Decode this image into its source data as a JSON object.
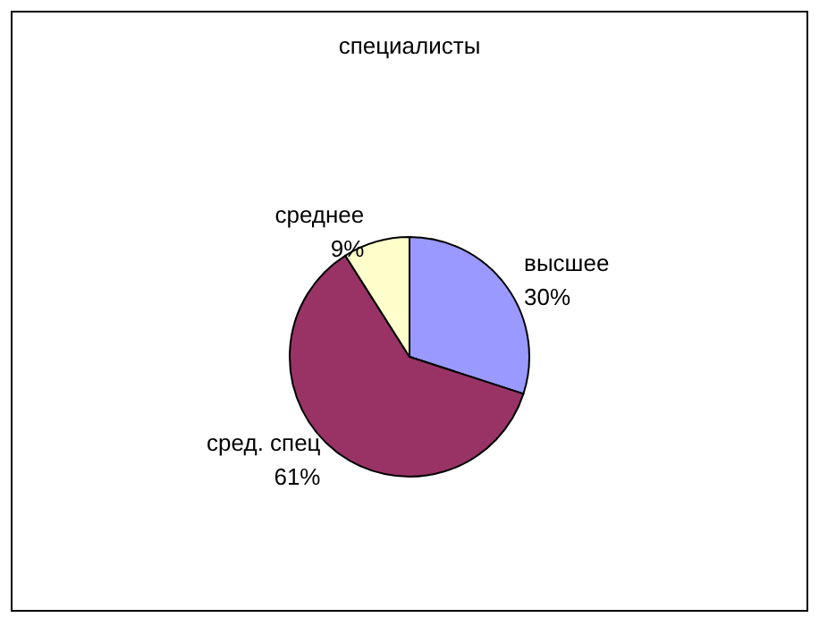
{
  "chart_data": {
    "type": "pie",
    "title": "специалисты",
    "categories": [
      "высшее",
      "сред. спец",
      "среднее"
    ],
    "values": [
      30,
      61,
      9
    ],
    "value_labels": [
      "30%",
      "61%",
      "9%"
    ],
    "colors": [
      "#9999ff",
      "#993366",
      "#ffffcc"
    ],
    "legend": false
  }
}
